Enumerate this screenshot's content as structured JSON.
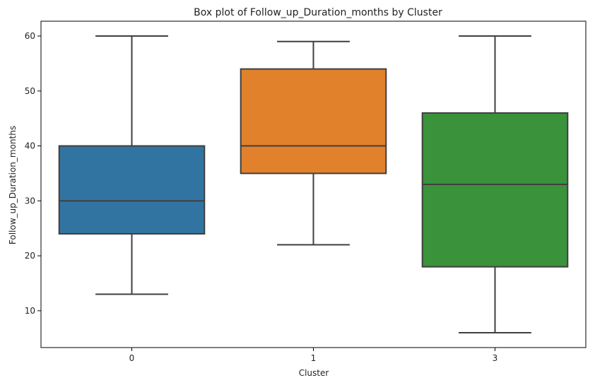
{
  "chart_data": {
    "type": "box",
    "title": "Box plot of Follow_up_Duration_months by Cluster",
    "xlabel": "Cluster",
    "ylabel": "Follow_up_Duration_months",
    "categories": [
      "0",
      "1",
      "3"
    ],
    "boxes": [
      {
        "category": "0",
        "whisker_low": 13,
        "q1": 24,
        "median": 30,
        "q3": 40,
        "whisker_high": 60,
        "color": "#3274a1"
      },
      {
        "category": "1",
        "whisker_low": 22,
        "q1": 35,
        "median": 40,
        "q3": 54,
        "whisker_high": 59,
        "color": "#e1812c"
      },
      {
        "category": "3",
        "whisker_low": 6,
        "q1": 18,
        "median": 33,
        "q3": 46,
        "whisker_high": 60,
        "color": "#3a923a"
      }
    ],
    "yticks": [
      10,
      20,
      30,
      40,
      50,
      60
    ],
    "ylim": [
      3.3,
      62.7
    ],
    "grid": false,
    "legend": "none"
  }
}
